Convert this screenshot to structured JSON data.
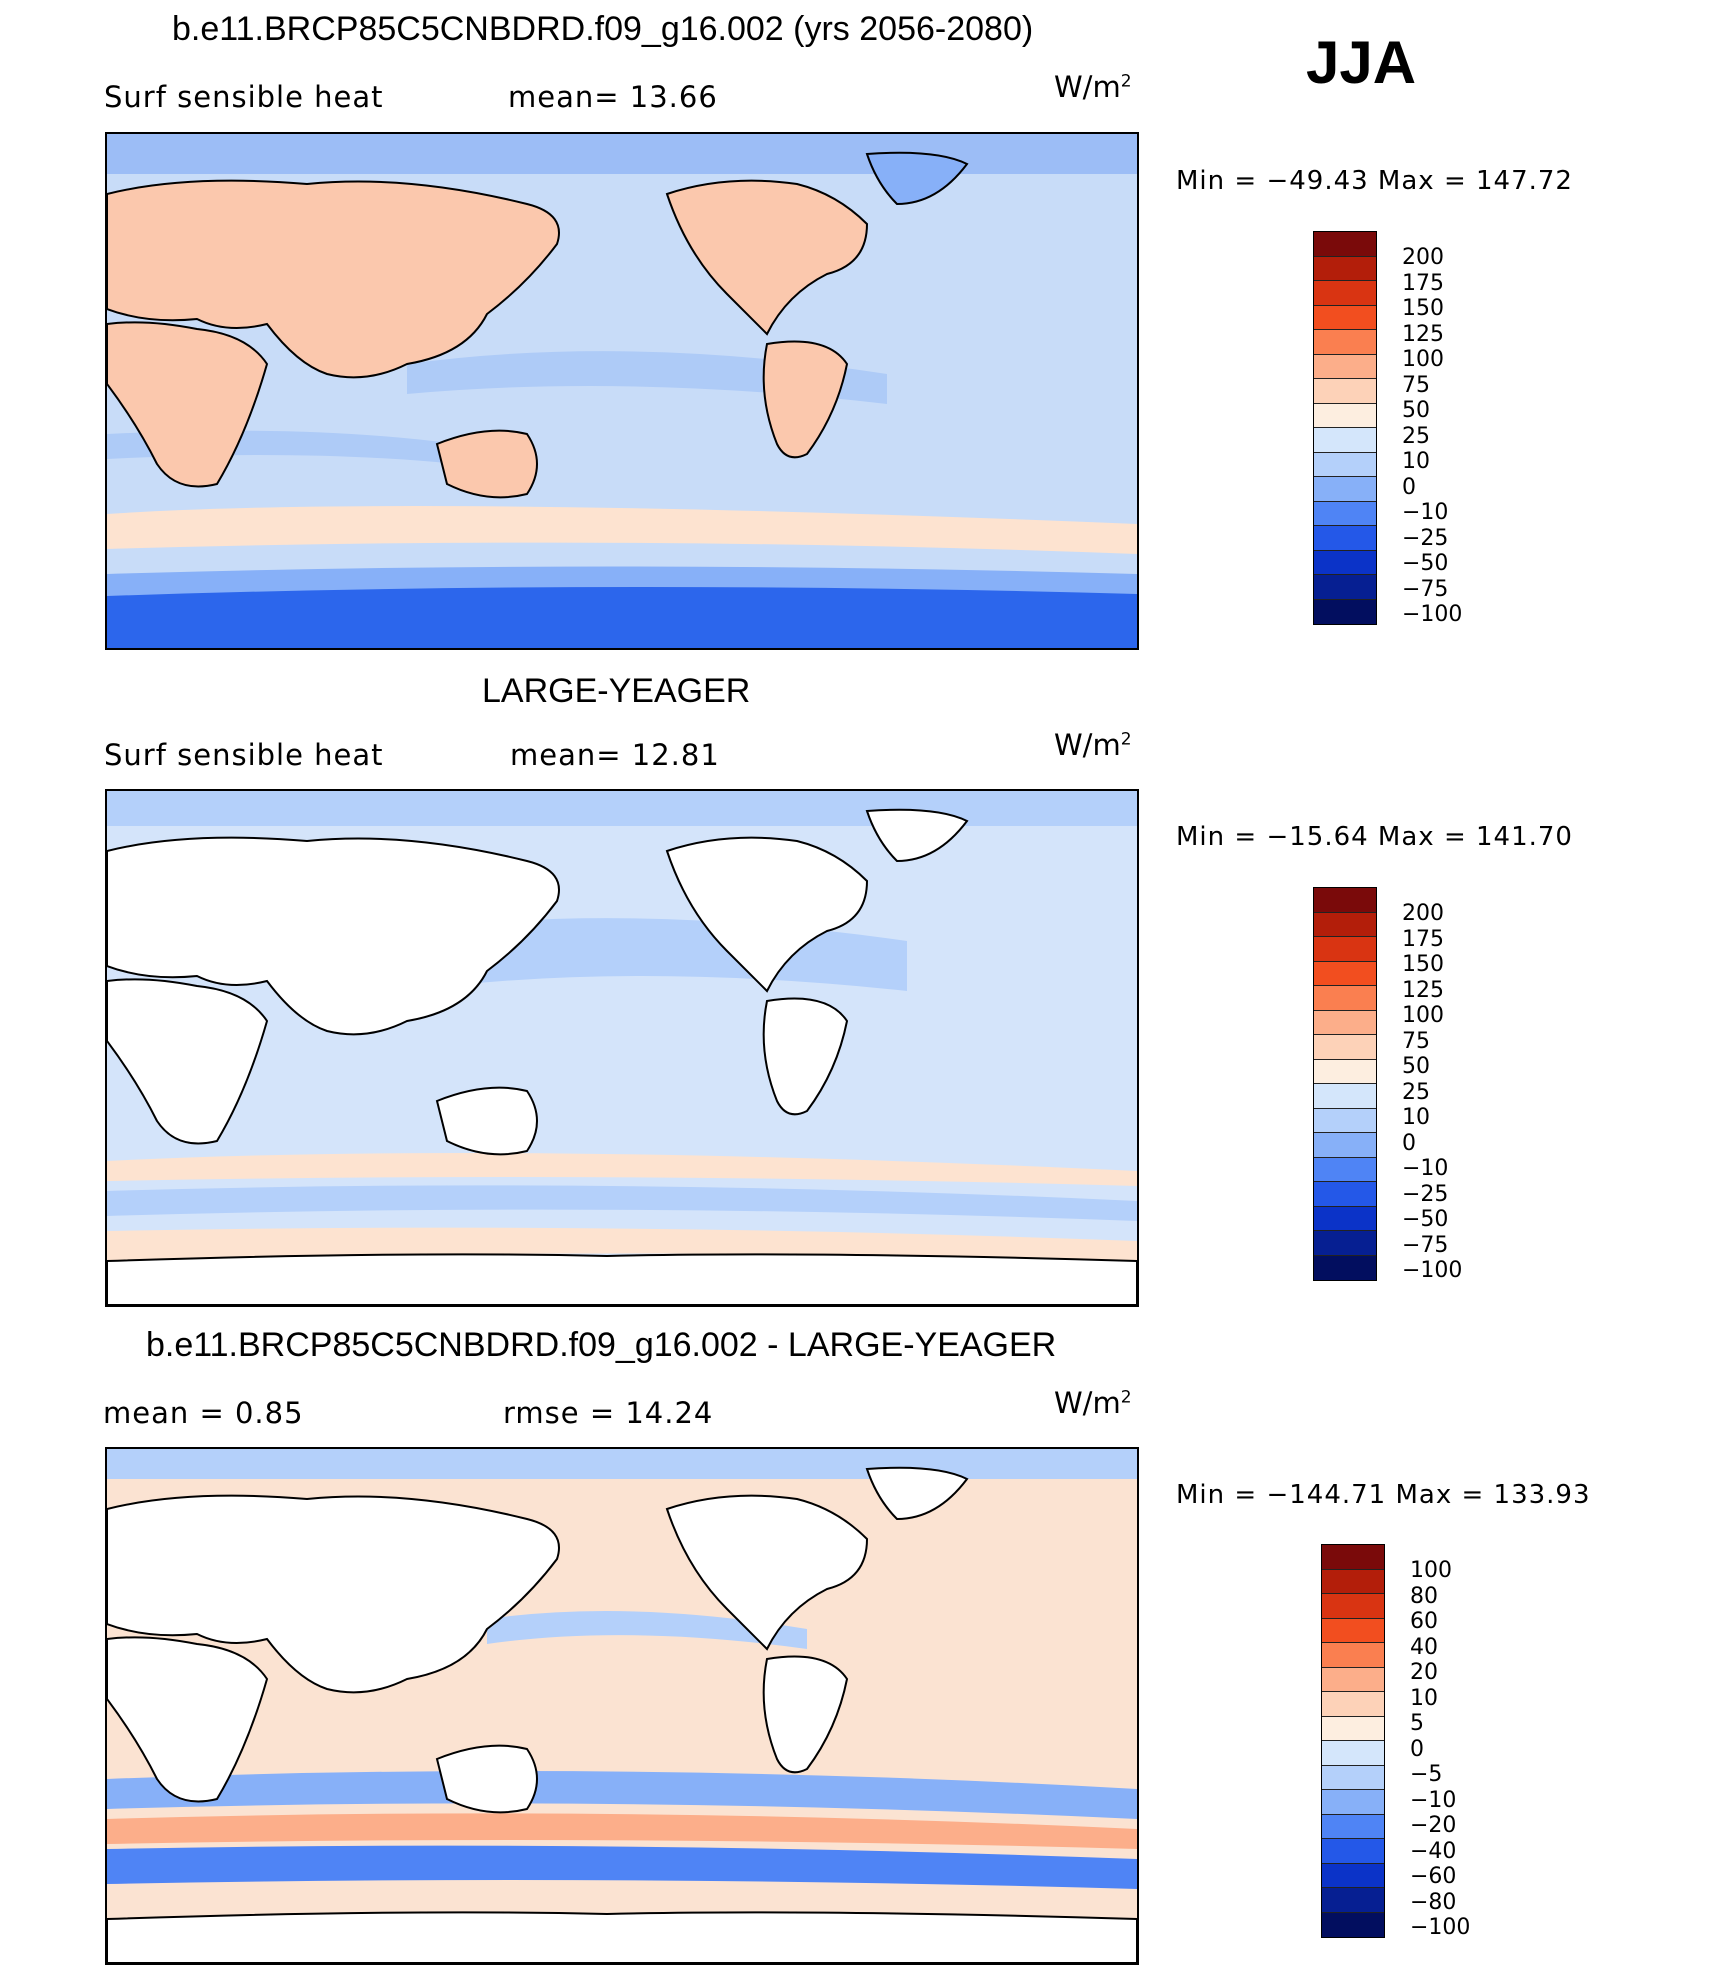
{
  "season": "JJA",
  "units": "W/m",
  "units_sup": "2",
  "panels": [
    {
      "title": "b.e11.BRCP85C5CNBDRD.f09_g16.002 (yrs 2056-2080)",
      "left_label": "Surf  sensible  heat",
      "stat_label": "mean=   13.66",
      "minmax": "Min  =  −49.43  Max  =  147.72",
      "ocean_color": "#c8dcf8",
      "land": "filled"
    },
    {
      "title": "LARGE-YEAGER",
      "left_label": "Surf  sensible  heat",
      "stat_label": "mean=   12.81",
      "minmax": "Min  =  −15.64  Max  =  141.70",
      "ocean_color": "#d4e4fa",
      "land": "white"
    },
    {
      "title": "b.e11.BRCP85C5CNBDRD.f09_g16.002 - LARGE-YEAGER",
      "left_label": "mean =     0.85",
      "stat_label": "rmse  =    14.24",
      "minmax": "Min  =  −144.71  Max  =  133.93",
      "ocean_color": "#fbe3d2",
      "land": "white"
    }
  ],
  "colorbars": [
    {
      "labels": [
        "200",
        "175",
        "150",
        "125",
        "100",
        "75",
        "50",
        "25",
        "10",
        "0",
        "−10",
        "−25",
        "−50",
        "−75",
        "−100"
      ],
      "colors": [
        "#7a0a0a",
        "#b31e0a",
        "#d93412",
        "#f24e1f",
        "#fa7f50",
        "#fcae8a",
        "#fdd2b8",
        "#fdeee0",
        "#d4e6fb",
        "#b4d0fa",
        "#87b0f8",
        "#4f84f5",
        "#2458e8",
        "#0b33c8",
        "#061f92",
        "#020e5f"
      ]
    },
    {
      "labels": [
        "200",
        "175",
        "150",
        "125",
        "100",
        "75",
        "50",
        "25",
        "10",
        "0",
        "−10",
        "−25",
        "−50",
        "−75",
        "−100"
      ],
      "colors": [
        "#7a0a0a",
        "#b31e0a",
        "#d93412",
        "#f24e1f",
        "#fa7f50",
        "#fcae8a",
        "#fdd2b8",
        "#fdeee0",
        "#d4e6fb",
        "#b4d0fa",
        "#87b0f8",
        "#4f84f5",
        "#2458e8",
        "#0b33c8",
        "#061f92",
        "#020e5f"
      ]
    },
    {
      "labels": [
        "100",
        "80",
        "60",
        "40",
        "20",
        "10",
        "5",
        "0",
        "−5",
        "−10",
        "−20",
        "−40",
        "−60",
        "−80",
        "−100"
      ],
      "colors": [
        "#7a0a0a",
        "#b31e0a",
        "#d93412",
        "#f24e1f",
        "#fa7f50",
        "#fcae8a",
        "#fdd2b8",
        "#fdeee0",
        "#d4e6fb",
        "#b4d0fa",
        "#87b0f8",
        "#4f84f5",
        "#2458e8",
        "#0b33c8",
        "#061f92",
        "#020e5f"
      ]
    }
  ]
}
